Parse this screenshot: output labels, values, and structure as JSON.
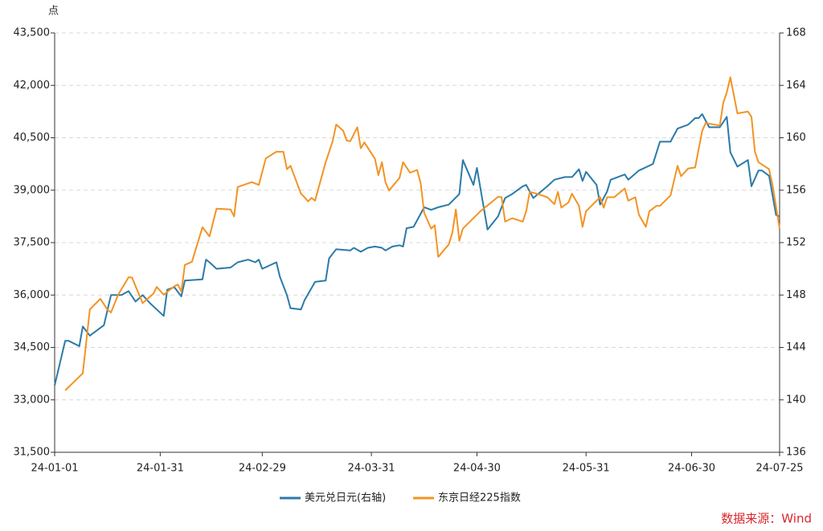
{
  "chart_data": {
    "type": "line",
    "y_unit_label": "点",
    "source": "数据来源：Wind",
    "xlim": [
      "24-01-01",
      "24-07-25"
    ],
    "xticks": [
      "24-01-01",
      "24-01-31",
      "24-02-29",
      "24-03-31",
      "24-04-30",
      "24-05-31",
      "24-06-30",
      "24-07-25"
    ],
    "ylim": [
      31500,
      43500
    ],
    "yticks": [
      {
        "value": 31500,
        "label": "31,500"
      },
      {
        "value": 33000,
        "label": "33,000"
      },
      {
        "value": 34500,
        "label": "34,500"
      },
      {
        "value": 36000,
        "label": "36,000"
      },
      {
        "value": 37500,
        "label": "37,500"
      },
      {
        "value": 39000,
        "label": "39,000"
      },
      {
        "value": 40500,
        "label": "40,500"
      },
      {
        "value": 42000,
        "label": "42,000"
      },
      {
        "value": 43500,
        "label": "43,500"
      }
    ],
    "y2lim": [
      136,
      168
    ],
    "y2ticks": [
      136,
      140,
      144,
      148,
      152,
      156,
      160,
      164,
      168
    ],
    "grid": true,
    "legend": "bottom",
    "series": [
      {
        "name": "美元兑日元(右轴)",
        "color": "#2b7aa8",
        "axis": "y2",
        "x": [
          "24-01-01",
          "24-01-04",
          "24-01-05",
          "24-01-08",
          "24-01-09",
          "24-01-11",
          "24-01-15",
          "24-01-17",
          "24-01-20",
          "24-01-22",
          "24-01-24",
          "24-01-26",
          "24-01-28",
          "24-01-30",
          "24-02-01",
          "24-02-02",
          "24-02-04",
          "24-02-06",
          "24-02-07",
          "24-02-12",
          "24-02-13",
          "24-02-14",
          "24-02-16",
          "24-02-20",
          "24-02-22",
          "24-02-25",
          "24-02-27",
          "24-02-28",
          "24-02-29",
          "24-03-04",
          "24-03-05",
          "24-03-07",
          "24-03-08",
          "24-03-11",
          "24-03-12",
          "24-03-15",
          "24-03-18",
          "24-03-19",
          "24-03-21",
          "24-03-25",
          "24-03-26",
          "24-03-28",
          "24-03-30",
          "24-04-01",
          "24-04-03",
          "24-04-04",
          "24-04-06",
          "24-04-08",
          "24-04-09",
          "24-04-10",
          "24-04-12",
          "24-04-15",
          "24-04-17",
          "24-04-19",
          "24-04-22",
          "24-04-25",
          "24-04-26",
          "24-04-29",
          "24-04-30",
          "24-05-03",
          "24-05-06",
          "24-05-08",
          "24-05-10",
          "24-05-13",
          "24-05-14",
          "24-05-16",
          "24-05-20",
          "24-05-22",
          "24-05-25",
          "24-05-27",
          "24-05-29",
          "24-05-30",
          "24-05-31",
          "24-06-03",
          "24-06-04",
          "24-06-06",
          "24-06-07",
          "24-06-11",
          "24-06-12",
          "24-06-15",
          "24-06-19",
          "24-06-21",
          "24-06-24",
          "24-06-26",
          "24-06-29",
          "24-07-01",
          "24-07-02",
          "24-07-03",
          "24-07-05",
          "24-07-08",
          "24-07-10",
          "24-07-11",
          "24-07-13",
          "24-07-16",
          "24-07-17",
          "24-07-19",
          "24-07-20",
          "24-07-22",
          "24-07-24",
          "24-07-25"
        ],
        "values": [
          141.1,
          144.5,
          144.5,
          144.1,
          145.6,
          144.9,
          145.7,
          148.0,
          148.0,
          148.3,
          147.5,
          148.0,
          147.4,
          146.9,
          146.4,
          148.4,
          148.6,
          147.9,
          149.1,
          149.2,
          150.7,
          150.5,
          150.0,
          150.1,
          150.5,
          150.7,
          150.5,
          150.7,
          150.0,
          150.5,
          149.4,
          148.0,
          147.0,
          146.9,
          147.6,
          149.0,
          149.1,
          150.8,
          151.5,
          151.4,
          151.6,
          151.3,
          151.6,
          151.7,
          151.6,
          151.4,
          151.7,
          151.8,
          151.7,
          153.1,
          153.2,
          154.7,
          154.5,
          154.7,
          154.9,
          155.7,
          158.3,
          156.4,
          157.7,
          153.0,
          154.0,
          155.4,
          155.7,
          156.3,
          156.4,
          155.4,
          156.3,
          156.8,
          157.0,
          157.0,
          157.6,
          156.7,
          157.4,
          156.4,
          154.9,
          155.9,
          156.8,
          157.2,
          156.8,
          157.5,
          158.0,
          159.7,
          159.7,
          160.7,
          161.0,
          161.5,
          161.5,
          161.8,
          160.8,
          160.8,
          161.6,
          158.9,
          157.8,
          158.3,
          156.3,
          157.5,
          157.5,
          157.1,
          154.1,
          154.0
        ]
      },
      {
        "name": "东京日经225指数",
        "color": "#f39324",
        "x": [
          "24-01-04",
          "24-01-09",
          "24-01-11",
          "24-01-14",
          "24-01-16",
          "24-01-17",
          "24-01-19",
          "24-01-22",
          "24-01-23",
          "24-01-24",
          "24-01-26",
          "24-01-29",
          "24-01-30",
          "24-02-01",
          "24-02-04",
          "24-02-05",
          "24-02-06",
          "24-02-07",
          "24-02-09",
          "24-02-12",
          "24-02-14",
          "24-02-16",
          "24-02-20",
          "24-02-21",
          "24-02-22",
          "24-02-26",
          "24-02-28",
          "24-03-01",
          "24-03-04",
          "24-03-06",
          "24-03-07",
          "24-03-08",
          "24-03-11",
          "24-03-12",
          "24-03-13",
          "24-03-14",
          "24-03-15",
          "24-03-18",
          "24-03-20",
          "24-03-21",
          "24-03-23",
          "24-03-24",
          "24-03-25",
          "24-03-27",
          "24-03-28",
          "24-03-29",
          "24-04-01",
          "24-04-02",
          "24-04-03",
          "24-04-04",
          "24-04-05",
          "24-04-08",
          "24-04-09",
          "24-04-11",
          "24-04-13",
          "24-04-14",
          "24-04-15",
          "24-04-17",
          "24-04-18",
          "24-04-19",
          "24-04-22",
          "24-04-23",
          "24-04-24",
          "24-04-25",
          "24-04-26",
          "24-05-01",
          "24-05-06",
          "24-05-07",
          "24-05-08",
          "24-05-10",
          "24-05-13",
          "24-05-14",
          "24-05-15",
          "24-05-17",
          "24-05-20",
          "24-05-22",
          "24-05-23",
          "24-05-24",
          "24-05-26",
          "24-05-27",
          "24-05-29",
          "24-05-30",
          "24-05-31",
          "24-06-04",
          "24-06-05",
          "24-06-06",
          "24-06-08",
          "24-06-11",
          "24-06-12",
          "24-06-14",
          "24-06-15",
          "24-06-17",
          "24-06-18",
          "24-06-20",
          "24-06-21",
          "24-06-24",
          "24-06-26",
          "24-06-27",
          "24-06-29",
          "24-07-01",
          "24-07-03",
          "24-07-04",
          "24-07-08",
          "24-07-09",
          "24-07-10",
          "24-07-11",
          "24-07-13",
          "24-07-16",
          "24-07-17",
          "24-07-18",
          "24-07-19",
          "24-07-22",
          "24-07-23",
          "24-07-25"
        ],
        "values": [
          33270,
          33760,
          35590,
          35890,
          35580,
          35500,
          36000,
          36510,
          36500,
          36250,
          35770,
          36030,
          36230,
          36010,
          36250,
          36300,
          36100,
          36860,
          36950,
          37940,
          37680,
          38470,
          38450,
          38250,
          39090,
          39230,
          39150,
          39910,
          40100,
          40100,
          39600,
          39700,
          38900,
          38800,
          38680,
          38780,
          38700,
          39800,
          40400,
          40880,
          40700,
          40420,
          40400,
          40800,
          40200,
          40370,
          39900,
          39430,
          39800,
          39230,
          38990,
          39350,
          39800,
          39500,
          39580,
          39200,
          38350,
          37900,
          38000,
          37090,
          37450,
          37780,
          38450,
          37550,
          37900,
          38400,
          38810,
          38800,
          38100,
          38200,
          38100,
          38400,
          38950,
          38900,
          38800,
          38600,
          38950,
          38500,
          38650,
          38900,
          38550,
          37950,
          38400,
          38800,
          38500,
          38800,
          38800,
          39050,
          38700,
          38800,
          38300,
          37950,
          38400,
          38550,
          38550,
          38850,
          39700,
          39400,
          39620,
          39650,
          40700,
          40920,
          40850,
          41500,
          41800,
          42230,
          41200,
          41250,
          41100,
          40100,
          39800,
          39600,
          39150,
          37900
        ]
      }
    ]
  }
}
